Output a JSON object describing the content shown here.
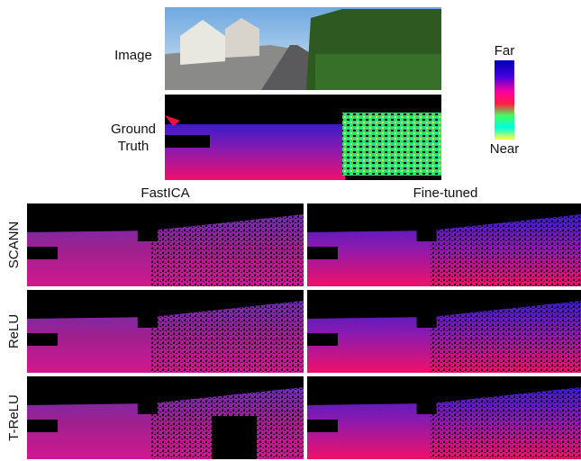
{
  "top": {
    "image_label": "Image",
    "ground_truth_label": [
      "Ground",
      "Truth"
    ]
  },
  "colorbar": {
    "far": "Far",
    "near": "Near"
  },
  "columns": [
    "FastICA",
    "Fine-tuned"
  ],
  "rows": [
    "SCANN",
    "ReLU",
    "T-ReLU"
  ]
}
